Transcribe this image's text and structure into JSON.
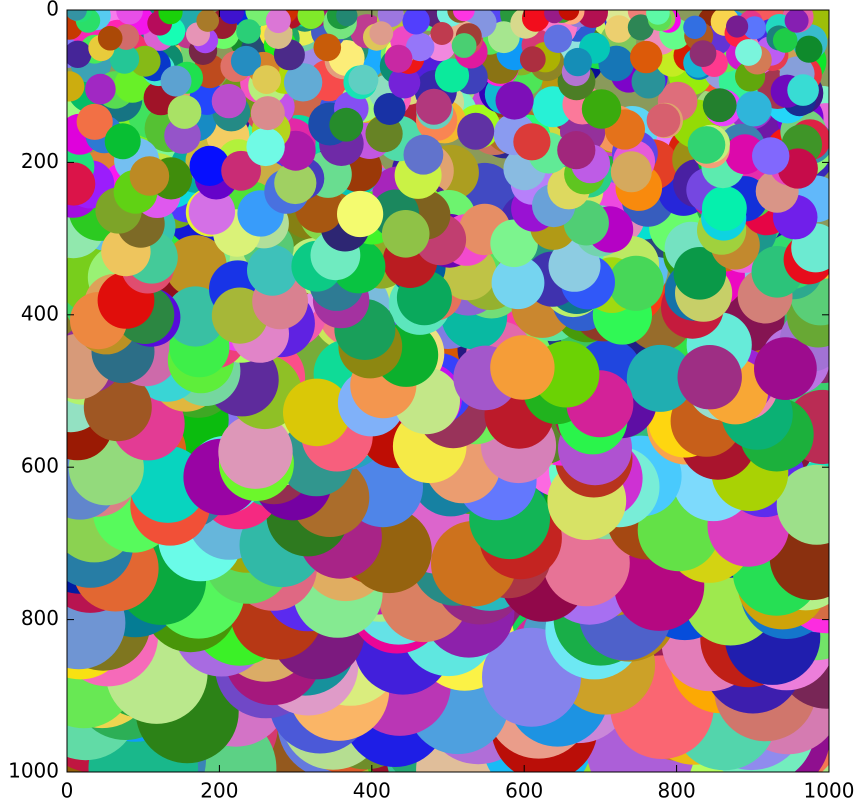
{
  "chart_data": {
    "type": "image",
    "xlim": [
      0,
      1000
    ],
    "ylim": [
      1000,
      0
    ],
    "xticks": [
      0,
      200,
      400,
      600,
      800,
      1000
    ],
    "yticks": [
      0,
      200,
      400,
      600,
      800,
      1000
    ]
  }
}
